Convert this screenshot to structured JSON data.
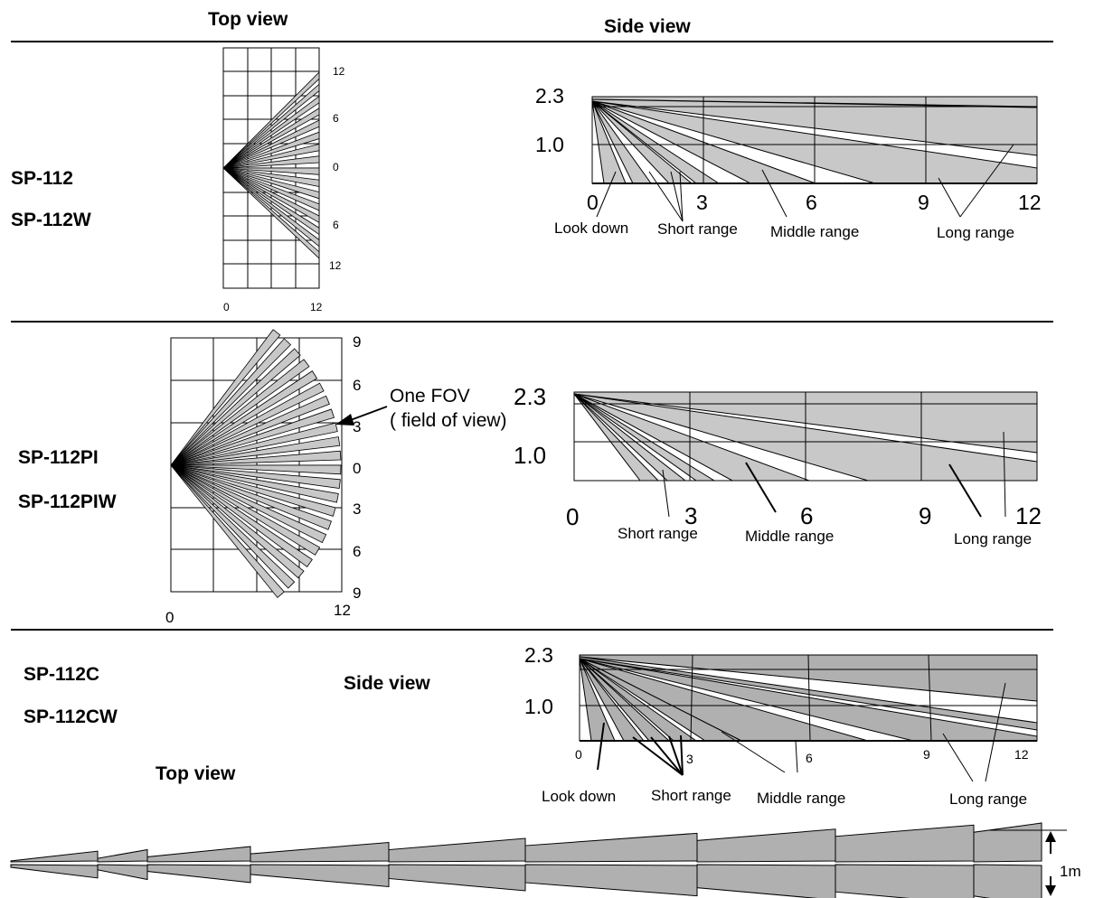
{
  "header": {
    "top_view": "Top view",
    "side_view": "Side view"
  },
  "colors": {
    "zone_fill": "#c8c8c8",
    "zone_fill_dark": "#b0b0b0",
    "line": "#000000",
    "background": "#ffffff"
  },
  "row1": {
    "models": [
      "SP-112",
      "SP-112W"
    ],
    "top": {
      "right_ticks": [
        "12",
        "6",
        "0",
        "6",
        "12"
      ],
      "bottom_ticks": [
        "0",
        "12"
      ]
    },
    "side": {
      "y_ticks": [
        "2.3",
        "1.0"
      ],
      "x_ticks": [
        "0",
        "3",
        "6",
        "9",
        "12"
      ],
      "labels": [
        "Look down",
        "Short range",
        "Middle range",
        "Long range"
      ]
    }
  },
  "row2": {
    "models": [
      "SP-112PI",
      "SP-112PIW"
    ],
    "top": {
      "right_ticks": [
        "9",
        "6",
        "3",
        "0",
        "3",
        "6",
        "9"
      ],
      "bottom_ticks": [
        "0",
        "12"
      ],
      "annotation": [
        "One FOV",
        "( field of view)"
      ]
    },
    "side": {
      "y_ticks": [
        "2.3",
        "1.0"
      ],
      "x_ticks": [
        "0",
        "3",
        "6",
        "9",
        "12"
      ],
      "labels": [
        "Short range",
        "Middle range",
        "Long range"
      ]
    }
  },
  "row3": {
    "models": [
      "SP-112C",
      "SP-112CW"
    ],
    "side_view_title": "Side view",
    "top_view_title": "Top view",
    "side": {
      "y_ticks": [
        "2.3",
        "1.0"
      ],
      "x_ticks": [
        "0",
        "3",
        "6",
        "9",
        "12"
      ],
      "labels": [
        "Look down",
        "Short range",
        "Middle range",
        "Long range"
      ]
    },
    "width_label": "1m"
  }
}
